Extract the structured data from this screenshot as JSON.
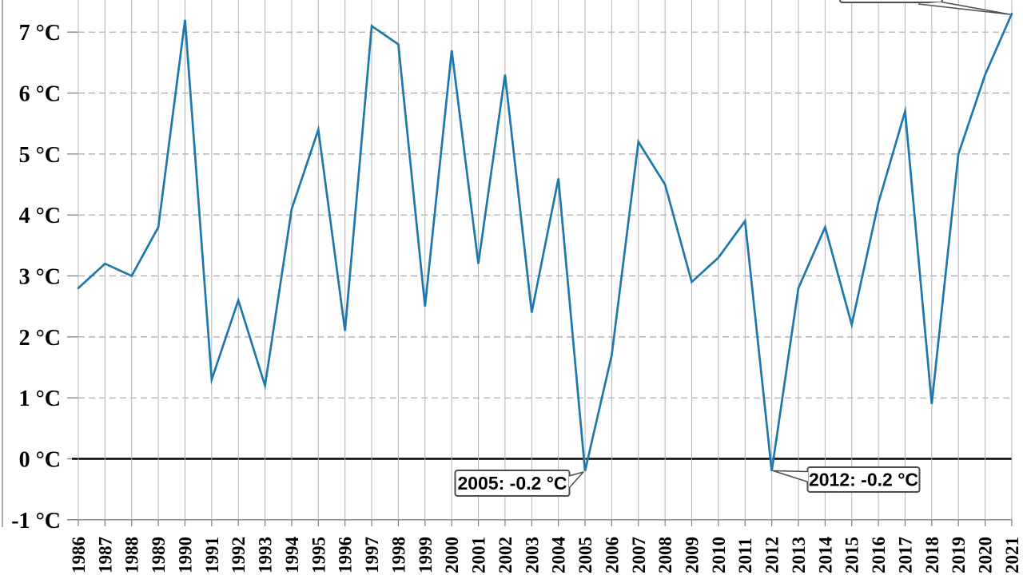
{
  "chart_data": {
    "type": "line",
    "title": "",
    "categories": [
      "1986",
      "1987",
      "1988",
      "1989",
      "1990",
      "1991",
      "1992",
      "1993",
      "1994",
      "1995",
      "1996",
      "1997",
      "1998",
      "1999",
      "2000",
      "2001",
      "2002",
      "2003",
      "2004",
      "2005",
      "2006",
      "2007",
      "2008",
      "2009",
      "2010",
      "2011",
      "2012",
      "2013",
      "2014",
      "2015",
      "2016",
      "2017",
      "2018",
      "2019",
      "2020",
      "2021"
    ],
    "series": [
      {
        "name": "temperature-series",
        "values": [
          2.8,
          3.2,
          3.0,
          3.8,
          7.2,
          1.3,
          2.6,
          1.2,
          4.1,
          5.4,
          2.1,
          7.1,
          6.8,
          2.5,
          6.7,
          3.2,
          6.3,
          2.4,
          4.6,
          -0.2,
          1.7,
          5.2,
          4.5,
          2.9,
          3.3,
          3.9,
          -0.2,
          2.8,
          3.8,
          2.2,
          4.2,
          5.7,
          0.9,
          5.0,
          6.3,
          7.3
        ]
      }
    ],
    "xlabel": "",
    "ylabel": "",
    "ylim": [
      -1,
      7.55
    ],
    "yticks": [
      {
        "value": 7,
        "label": "7 °C"
      },
      {
        "value": 6,
        "label": "6 °C"
      },
      {
        "value": 5,
        "label": "5 °C"
      },
      {
        "value": 4,
        "label": "4 °C"
      },
      {
        "value": 3,
        "label": "3 °C"
      },
      {
        "value": 2,
        "label": "2 °C"
      },
      {
        "value": 1,
        "label": "1 °C"
      },
      {
        "value": 0,
        "label": "0 °C"
      },
      {
        "value": -1,
        "label": "-1 °C"
      }
    ],
    "grid": {
      "horizontal": "dashed",
      "vertical": "solid",
      "zero_line": "solid-black",
      "legend": "none"
    },
    "colors": {
      "line": "#1f78ab",
      "grid_vertical": "#b3b3b3",
      "grid_dashed": "#a6a6a6",
      "spine": "#808080",
      "zero_line": "#000000",
      "annotation_border": "#4d4d4d",
      "annotation_fill": "#ffffff"
    },
    "annotations": [
      {
        "id": "annotation-2005",
        "label": "2005: -0.2 °C",
        "year": "2005",
        "value": -0.2,
        "cut_off": false
      },
      {
        "id": "annotation-2012",
        "label": "2012: -0.2 °C",
        "year": "2012",
        "value": -0.2,
        "cut_off": false
      },
      {
        "id": "annotation-2021-partial",
        "label": "",
        "year": "2021",
        "value": 7.3,
        "cut_off": true
      }
    ]
  }
}
